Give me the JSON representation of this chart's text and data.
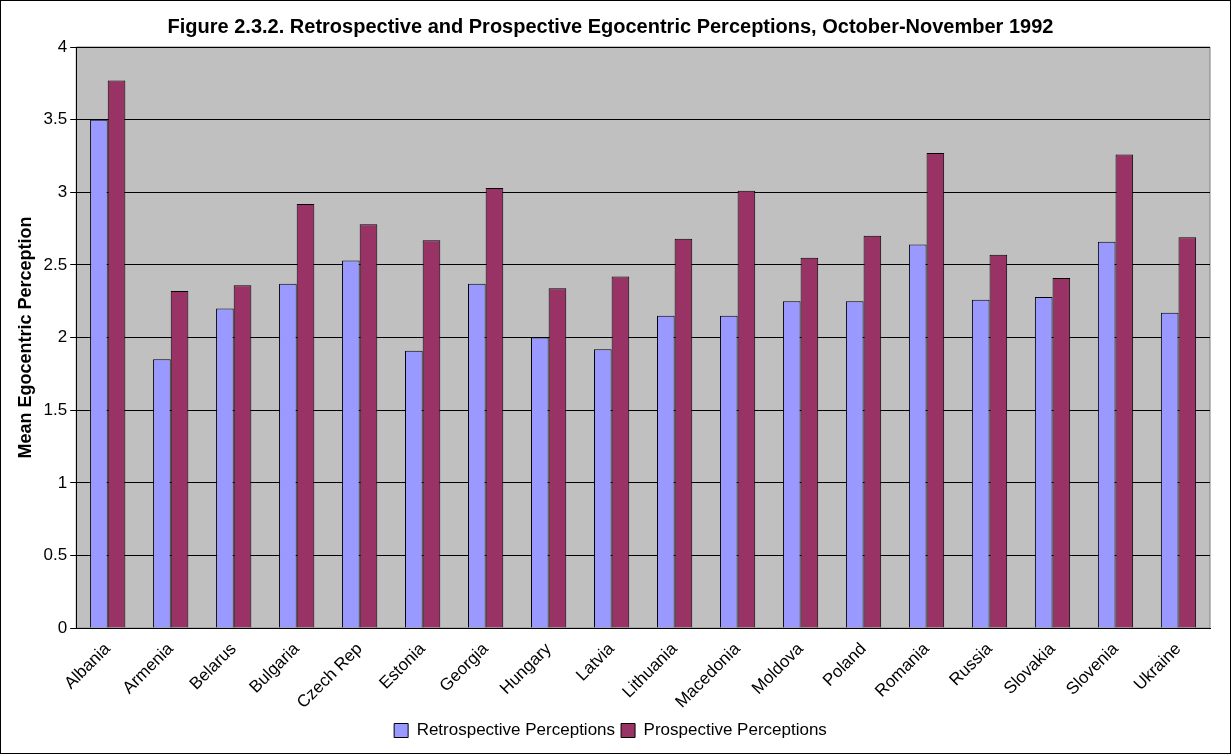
{
  "chart_data": {
    "type": "bar",
    "title": "Figure 2.3.2. Retrospective and Prospective Egocentric Perceptions, October-November 1992",
    "ylabel": "Mean Egocentric Perception",
    "categories": [
      "Albania",
      "Armenia",
      "Belarus",
      "Bulgaria",
      "Czech Rep",
      "Estonia",
      "Georgia",
      "Hungary",
      "Latvia",
      "Lithuania",
      "Macedonia",
      "Moldova",
      "Poland",
      "Romania",
      "Russia",
      "Slovakia",
      "Slovenia",
      "Ukraine"
    ],
    "series": [
      {
        "name": "Retrospective Perceptions",
        "color": "#9999ff",
        "values": [
          3.5,
          1.85,
          2.2,
          2.37,
          2.53,
          1.91,
          2.37,
          2.0,
          1.92,
          2.15,
          2.15,
          2.25,
          2.25,
          2.64,
          2.26,
          2.28,
          2.66,
          2.17
        ]
      },
      {
        "name": "Prospective Perceptions",
        "color": "#993366",
        "values": [
          3.77,
          2.32,
          2.36,
          2.92,
          2.78,
          2.67,
          3.03,
          2.34,
          2.42,
          2.68,
          3.01,
          2.55,
          2.7,
          3.27,
          2.57,
          2.41,
          3.26,
          2.69
        ]
      }
    ],
    "ylim": [
      0,
      4
    ],
    "yticks": [
      0,
      0.5,
      1,
      1.5,
      2,
      2.5,
      3,
      3.5,
      4
    ],
    "grid": "y",
    "legend": "bottom"
  }
}
